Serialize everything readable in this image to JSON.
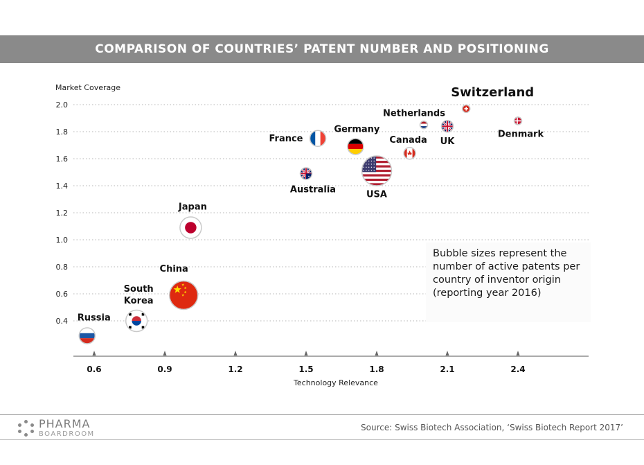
{
  "header": {
    "title": "COMPARISON OF COUNTRIES’ PATENT NUMBER AND POSITIONING"
  },
  "chart_data": {
    "type": "scatter",
    "title": "COMPARISON OF COUNTRIES’ PATENT NUMBER AND POSITIONING",
    "xlabel": "Technology Relevance",
    "ylabel": "Market Coverage",
    "xlim": [
      0.5,
      2.7
    ],
    "ylim": [
      0.2,
      2.05
    ],
    "x_ticks": [
      "0.6",
      "0.9",
      "1.2",
      "1.5",
      "1.8",
      "2.1",
      "2.4"
    ],
    "y_ticks": [
      "0.4",
      "0.6",
      "0.8",
      "1.0",
      "1.2",
      "1.4",
      "1.6",
      "1.8",
      "2.0"
    ],
    "grid": "horizontal-dotted",
    "points": [
      {
        "name": "Russia",
        "x": 0.57,
        "y": 0.29,
        "size": "small",
        "flag": "russia-flag"
      },
      {
        "name": "South Korea",
        "x": 0.78,
        "y": 0.4,
        "size": "medium",
        "flag": "south-korea-flag"
      },
      {
        "name": "China",
        "x": 0.98,
        "y": 0.59,
        "size": "large",
        "flag": "china-flag"
      },
      {
        "name": "Japan",
        "x": 1.01,
        "y": 1.09,
        "size": "medium",
        "flag": "japan-flag"
      },
      {
        "name": "Australia",
        "x": 1.5,
        "y": 1.49,
        "size": "xsmall",
        "flag": "australia-flag"
      },
      {
        "name": "France",
        "x": 1.55,
        "y": 1.75,
        "size": "small",
        "flag": "france-flag"
      },
      {
        "name": "Germany",
        "x": 1.71,
        "y": 1.69,
        "size": "small",
        "flag": "germany-flag"
      },
      {
        "name": "USA",
        "x": 1.8,
        "y": 1.51,
        "size": "xlarge",
        "flag": "usa-flag"
      },
      {
        "name": "Canada",
        "x": 1.94,
        "y": 1.64,
        "size": "xsmall",
        "flag": "canada-flag"
      },
      {
        "name": "Netherlands",
        "x": 2.0,
        "y": 1.85,
        "size": "xxsmall",
        "flag": "netherlands-flag"
      },
      {
        "name": "UK",
        "x": 2.1,
        "y": 1.84,
        "size": "xsmall",
        "flag": "uk-flag"
      },
      {
        "name": "Switzerland",
        "x": 2.18,
        "y": 1.97,
        "size": "xxsmall",
        "flag": "switzerland-flag"
      },
      {
        "name": "Denmark",
        "x": 2.4,
        "y": 1.88,
        "size": "xxsmall",
        "flag": "denmark-flag"
      }
    ],
    "annotation": "Bubble sizes represent the number of active patents per country of inventor origin (reporting year 2016)"
  },
  "footer": {
    "logo_line1": "PHARMA",
    "logo_line2": "BOARDROOM",
    "source": "Source: Swiss Biotech Association, ‘Swiss Biotech Report 2017’"
  }
}
